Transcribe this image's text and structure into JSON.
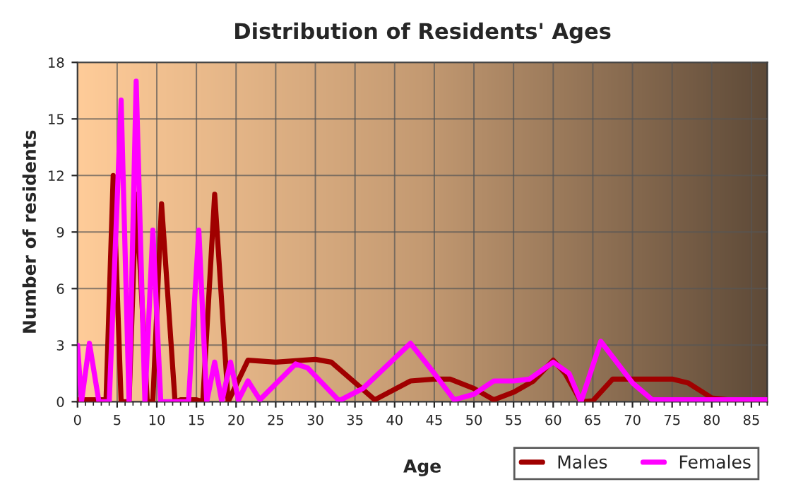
{
  "chart_data": {
    "type": "line",
    "title": "Distribution of Residents' Ages",
    "xlabel": "Age",
    "ylabel": "Number of residents",
    "xlim": [
      0,
      87
    ],
    "xticks": [
      0,
      5,
      10,
      15,
      20,
      25,
      30,
      35,
      40,
      45,
      50,
      55,
      60,
      65,
      70,
      75,
      80,
      85
    ],
    "ylim": [
      0,
      18
    ],
    "yticks": [
      0,
      3,
      6,
      9,
      12,
      15,
      18
    ],
    "grid": true,
    "legend": "bottom right",
    "line_style": "solid",
    "series": [
      {
        "name": "Males",
        "color": "#a00000",
        "x": [
          0,
          3.6,
          4.5,
          5.5,
          6.5,
          7.4,
          8.8,
          9.5,
          10.6,
          12.3,
          13,
          15,
          15.8,
          17.3,
          19,
          21.5,
          25,
          30,
          32,
          37.5,
          42,
          45,
          47,
          50,
          52.5,
          55,
          57.5,
          60,
          61.5,
          63.5,
          65,
          67.5,
          70,
          75,
          77,
          80,
          82,
          87
        ],
        "values": [
          0.1,
          0.1,
          12,
          0,
          0,
          11,
          0,
          0,
          10.5,
          0,
          0.1,
          0.1,
          0,
          11,
          0,
          2.2,
          2.1,
          2.25,
          2.1,
          0.1,
          1.1,
          1.2,
          1.2,
          0.7,
          0.1,
          0.5,
          1.1,
          2.2,
          1.5,
          0,
          0.05,
          1.2,
          1.2,
          1.2,
          1,
          0.2,
          0.1,
          0.1
        ]
      },
      {
        "name": "Females",
        "color": "#ff00ff",
        "x": [
          0,
          0.5,
          1.5,
          2.7,
          4,
          5.5,
          6.5,
          7.4,
          8.5,
          9.5,
          10.5,
          14,
          15.3,
          16.3,
          17.3,
          18.2,
          19.3,
          20.3,
          21.5,
          23,
          27.5,
          29,
          33,
          36,
          38,
          42,
          45,
          47.5,
          50,
          52.5,
          55,
          57,
          60,
          62,
          63.5,
          66,
          68,
          70,
          72.5,
          75,
          80,
          85,
          87
        ],
        "values": [
          3,
          0,
          3.1,
          0,
          0,
          16,
          0,
          17,
          0,
          9.1,
          0,
          0,
          9.1,
          0,
          2.1,
          0,
          2.1,
          0.1,
          1.1,
          0.1,
          2,
          1.8,
          0.05,
          0.7,
          1.5,
          3.1,
          1.5,
          0.1,
          0.4,
          1.1,
          1.1,
          1.2,
          2.1,
          1.5,
          0,
          3.2,
          2.1,
          1,
          0.1,
          0.1,
          0.1,
          0.1,
          0.1
        ]
      }
    ]
  }
}
